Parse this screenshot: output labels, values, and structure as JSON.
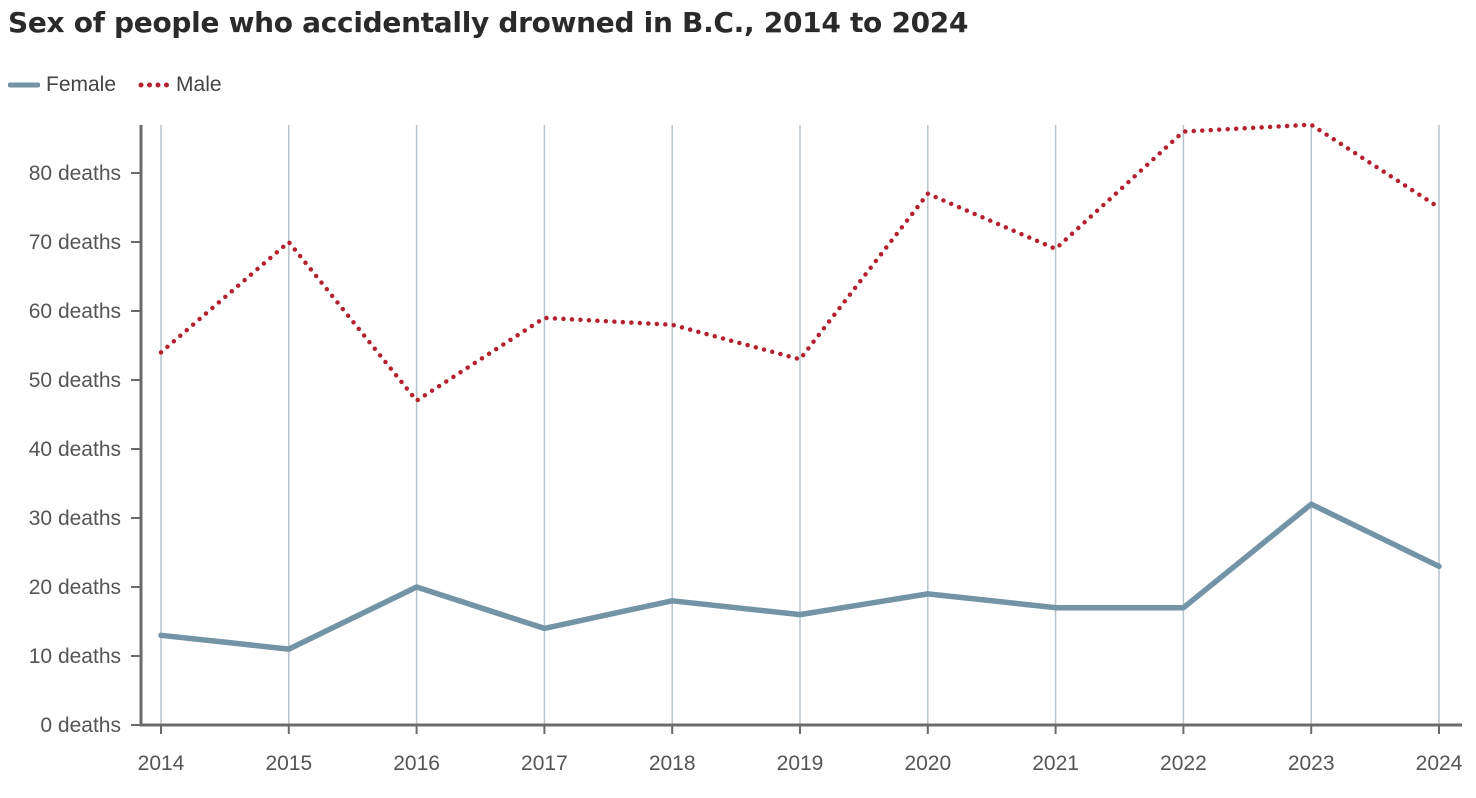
{
  "chart_data": {
    "type": "line",
    "title": "Sex of people who accidentally drowned in B.C., 2014 to 2024",
    "x": [
      2014,
      2015,
      2016,
      2017,
      2018,
      2019,
      2020,
      2021,
      2022,
      2023,
      2024
    ],
    "x_tick_labels": [
      "2014",
      "2015",
      "2016",
      "2017",
      "2018",
      "2019",
      "2020",
      "2021",
      "2022",
      "2023",
      "2024"
    ],
    "y_tick_values": [
      0,
      10,
      20,
      30,
      40,
      50,
      60,
      70,
      80
    ],
    "y_tick_labels": [
      "0 deaths",
      "10 deaths",
      "20 deaths",
      "30 deaths",
      "40 deaths",
      "50 deaths",
      "60 deaths",
      "70 deaths",
      "80 deaths"
    ],
    "xlim": [
      2014,
      2024
    ],
    "ylim": [
      0,
      87
    ],
    "grid": "vertical",
    "legend_position": "top-left",
    "series": [
      {
        "name": "Female",
        "style": "solid",
        "color": "#7393a7",
        "values": [
          13,
          11,
          20,
          14,
          18,
          16,
          19,
          17,
          17,
          32,
          23
        ]
      },
      {
        "name": "Male",
        "style": "dotted",
        "color": "#b5202e",
        "values": [
          54,
          70,
          47,
          59,
          58,
          53,
          77,
          69,
          86,
          87,
          75
        ]
      }
    ]
  }
}
